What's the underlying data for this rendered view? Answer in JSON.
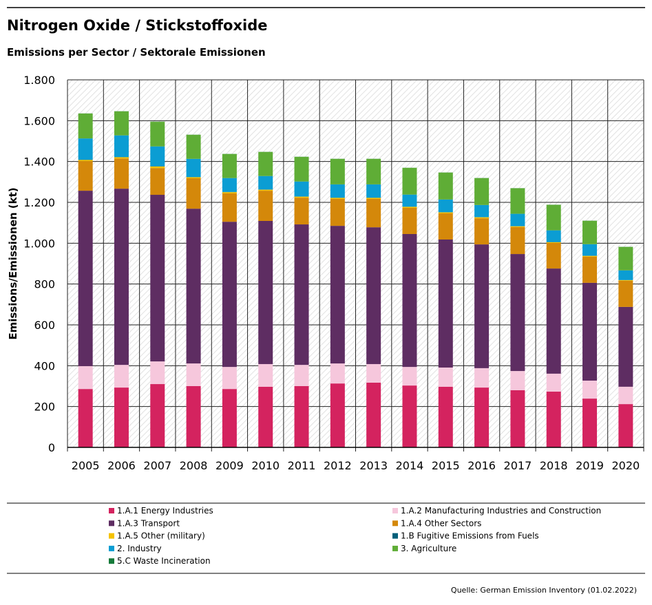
{
  "chart_data": {
    "type": "bar",
    "stacked": true,
    "title": "Nitrogen Oxide / Stickstoffoxide",
    "subtitle": "Emissions per Sector / Sektorale Emissionen",
    "y_label": "Emissions/Emissionen (kt)",
    "source": "Quelle: German Emission Inventory (01.02.2022)",
    "categories": [
      "2005",
      "2006",
      "2007",
      "2008",
      "2009",
      "2010",
      "2011",
      "2012",
      "2013",
      "2014",
      "2015",
      "2016",
      "2017",
      "2018",
      "2019",
      "2020"
    ],
    "ylim": [
      0,
      1800
    ],
    "yticks": [
      0,
      200,
      400,
      600,
      800,
      {
        "value": 1000,
        "label": "1.000"
      },
      {
        "value": 1200,
        "label": "1.200"
      },
      {
        "value": 1400,
        "label": "1.400"
      },
      {
        "value": 1600,
        "label": "1.600"
      },
      {
        "value": 1800,
        "label": "1.800"
      }
    ],
    "grid": true,
    "series": [
      {
        "name": "1.A.1 Energy Industries",
        "color": "#d4235f",
        "values": [
          286,
          293,
          310,
          300,
          286,
          297,
          300,
          313,
          317,
          303,
          297,
          293,
          280,
          273,
          239,
          212
        ]
      },
      {
        "name": "1.A.2 Manufacturing Industries and Construction",
        "color": "#f6c7dc",
        "values": [
          112,
          111,
          111,
          111,
          108,
          111,
          104,
          98,
          91,
          91,
          94,
          95,
          94,
          88,
          88,
          85
        ]
      },
      {
        "name": "1.A.3 Transport",
        "color": "#5e2d62",
        "values": [
          859,
          863,
          816,
          758,
          711,
          701,
          688,
          674,
          670,
          651,
          627,
          606,
          573,
          515,
          479,
          391
        ]
      },
      {
        "name": "1.A.4 Other Sectors",
        "color": "#d4880a",
        "values": [
          145,
          148,
          131,
          149,
          139,
          148,
          131,
          132,
          139,
          128,
          128,
          128,
          132,
          125,
          128,
          128
        ]
      },
      {
        "name": "1.A.5 Other (military)",
        "color": "#f5c200",
        "values": [
          6,
          6,
          8,
          5,
          6,
          5,
          5,
          5,
          5,
          5,
          5,
          5,
          4,
          4,
          4,
          3
        ]
      },
      {
        "name": "1.B Fugitive Emissions from Fuels",
        "color": "#005f7a",
        "values": [
          1,
          1,
          1,
          1,
          1,
          1,
          1,
          1,
          1,
          1,
          1,
          1,
          1,
          1,
          1,
          1
        ]
      },
      {
        "name": "2. Industry",
        "color": "#0b9dd3",
        "values": [
          104,
          106,
          97,
          89,
          68,
          66,
          73,
          65,
          65,
          59,
          62,
          59,
          60,
          57,
          56,
          47
        ]
      },
      {
        "name": "3. Agriculture",
        "color": "#5fad36",
        "values": [
          122,
          118,
          121,
          118,
          118,
          118,
          121,
          125,
          125,
          131,
          132,
          132,
          125,
          125,
          115,
          115
        ]
      },
      {
        "name": "5.C Waste Incineration",
        "color": "#157a3a",
        "values": [
          0.5,
          0.5,
          0.5,
          0.5,
          0.5,
          0.5,
          0.5,
          0.5,
          0.5,
          0.5,
          0.5,
          0.5,
          0.5,
          0.5,
          0.5,
          0.5
        ]
      }
    ]
  }
}
